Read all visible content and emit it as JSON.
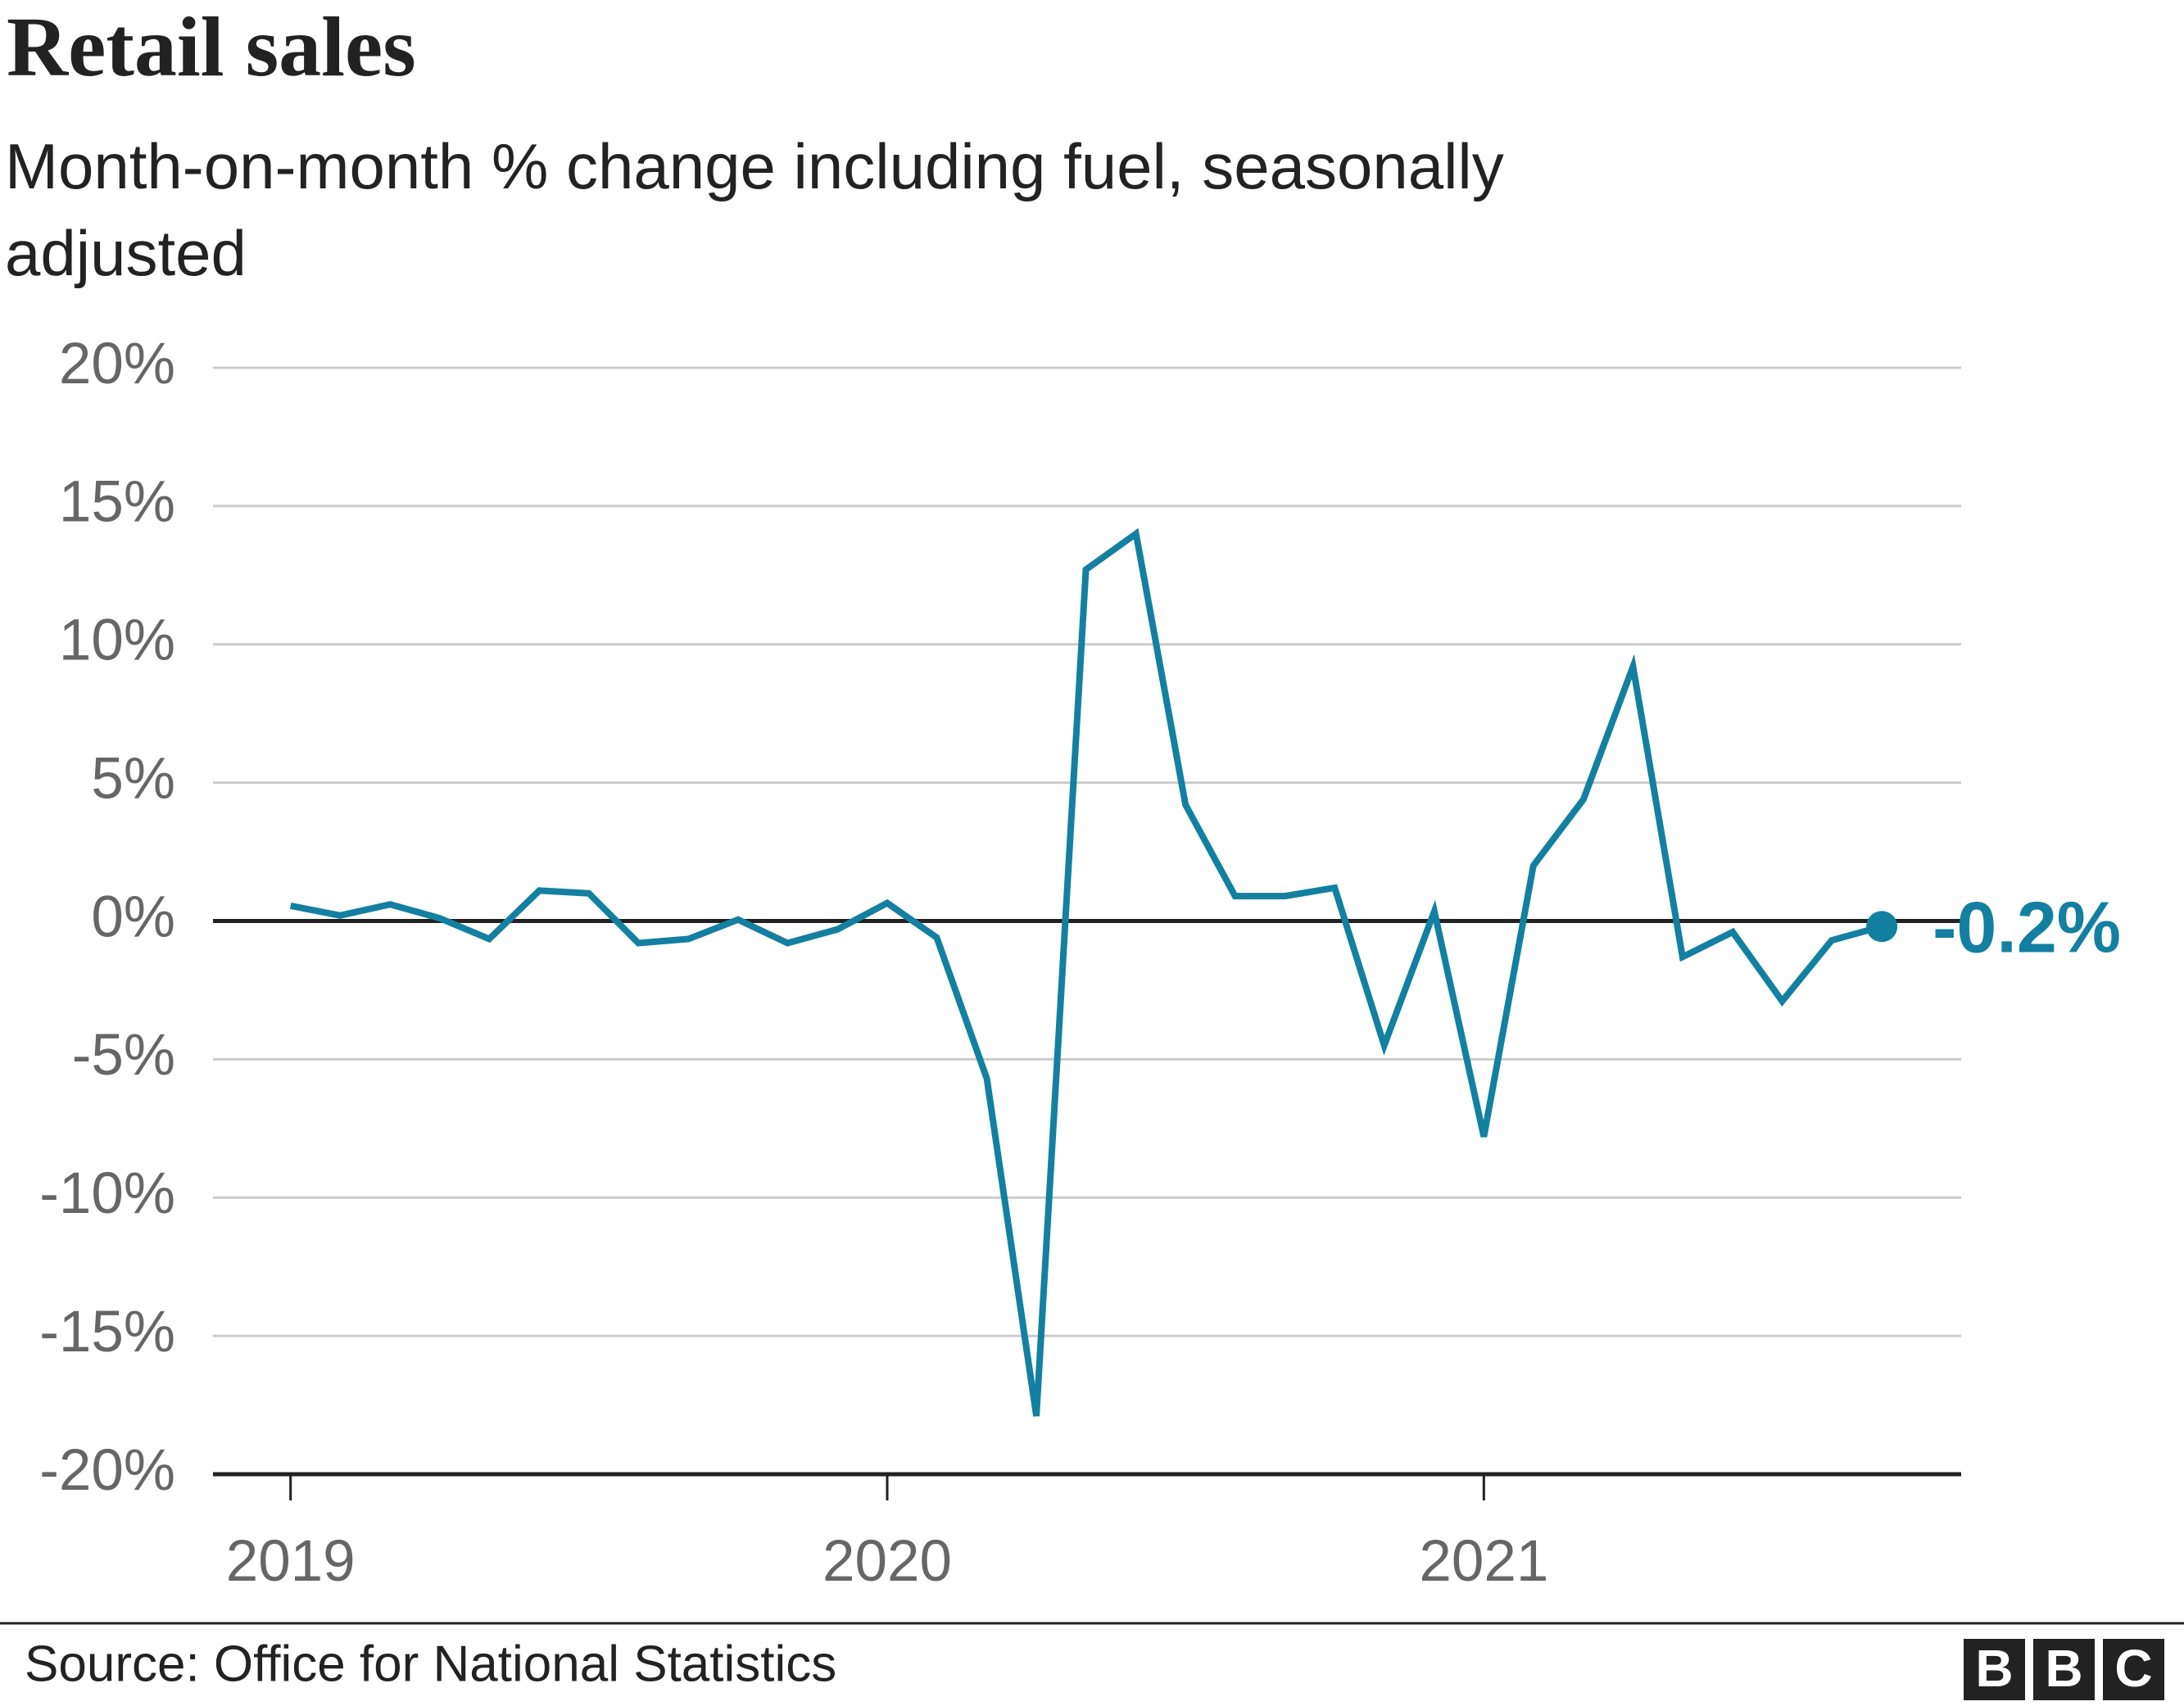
{
  "chart_data": {
    "type": "line",
    "title": "Retail sales",
    "subtitle": "Month-on-month % change including fuel, seasonally adjusted",
    "source": "Source: Office for National Statistics",
    "logo": [
      "B",
      "B",
      "C"
    ],
    "x": [
      2019,
      2019.083,
      2019.167,
      2019.25,
      2019.333,
      2019.417,
      2019.5,
      2019.583,
      2019.667,
      2019.75,
      2019.833,
      2019.917,
      2020,
      2020.083,
      2020.167,
      2020.25,
      2020.333,
      2020.417,
      2020.5,
      2020.583,
      2020.667,
      2020.75,
      2020.833,
      2020.917,
      2021,
      2021.083,
      2021.167,
      2021.25,
      2021.333,
      2021.417,
      2021.5,
      2021.583,
      2021.667
    ],
    "values": [
      0.55,
      0.2,
      0.6,
      0.1,
      -0.65,
      1.1,
      1.0,
      -0.8,
      -0.65,
      0.05,
      -0.8,
      -0.3,
      0.65,
      -0.6,
      -5.7,
      -17.9,
      12.7,
      14.0,
      4.2,
      0.9,
      0.9,
      1.2,
      -4.5,
      0.35,
      -7.8,
      2.0,
      4.4,
      9.2,
      -1.3,
      -0.4,
      -2.9,
      -0.7,
      -0.2
    ],
    "value_labels": [
      null,
      null,
      null,
      null,
      null,
      null,
      null,
      null,
      null,
      null,
      null,
      null,
      null,
      null,
      null,
      null,
      null,
      null,
      null,
      null,
      null,
      null,
      null,
      null,
      null,
      null,
      null,
      null,
      null,
      null,
      null,
      null,
      "-0.2%"
    ],
    "color": "#1380a1",
    "xlim": [
      2018.87,
      2021.8
    ],
    "xticks": [
      2019,
      2020,
      2021
    ],
    "ylim": [
      -20,
      20
    ],
    "yticks": [
      {
        "value": -20,
        "label": "-20%"
      },
      {
        "value": -15,
        "label": "-15%"
      },
      {
        "value": -10,
        "label": "-10%"
      },
      {
        "value": -5,
        "label": "-5%"
      },
      {
        "value": 0,
        "label": "0%"
      },
      {
        "value": 5,
        "label": "5%"
      },
      {
        "value": 10,
        "label": "10%"
      },
      {
        "value": 15,
        "label": "15%"
      },
      {
        "value": 20,
        "label": "20%"
      }
    ],
    "grid": true
  }
}
